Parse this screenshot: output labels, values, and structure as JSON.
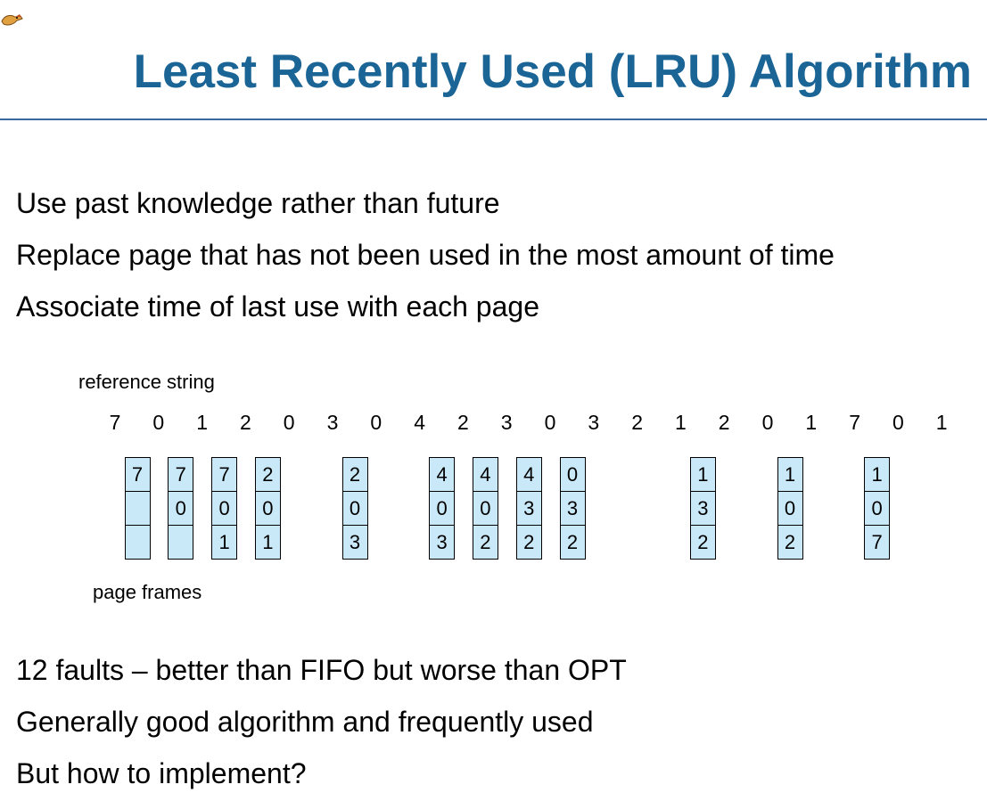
{
  "slide": {
    "title": "Least Recently Used (LRU) Algorithm",
    "logo_icon": "dinosaur-icon",
    "accent_color": "#1a6496",
    "rule_color": "#3a68a4"
  },
  "bullets_top": [
    "Use past knowledge rather than future",
    "Replace page that has not been used in the most amount of time",
    "Associate time of last use with each page"
  ],
  "diagram": {
    "reference_label": "reference string",
    "frames_label": "page frames",
    "reference_string": [
      "7",
      "0",
      "1",
      "2",
      "0",
      "3",
      "0",
      "4",
      "2",
      "3",
      "0",
      "3",
      "2",
      "1",
      "2",
      "0",
      "1",
      "7",
      "0",
      "1"
    ],
    "frame_color": "#c9e9f8",
    "frames": [
      {
        "ref_index": 0,
        "cells": [
          "7",
          "",
          ""
        ]
      },
      {
        "ref_index": 1,
        "cells": [
          "7",
          "0",
          ""
        ]
      },
      {
        "ref_index": 2,
        "cells": [
          "7",
          "0",
          "1"
        ]
      },
      {
        "ref_index": 3,
        "cells": [
          "2",
          "0",
          "1"
        ]
      },
      {
        "ref_index": 5,
        "cells": [
          "2",
          "0",
          "3"
        ]
      },
      {
        "ref_index": 7,
        "cells": [
          "4",
          "0",
          "3"
        ]
      },
      {
        "ref_index": 8,
        "cells": [
          "4",
          "0",
          "2"
        ]
      },
      {
        "ref_index": 9,
        "cells": [
          "4",
          "3",
          "2"
        ]
      },
      {
        "ref_index": 10,
        "cells": [
          "0",
          "3",
          "2"
        ]
      },
      {
        "ref_index": 13,
        "cells": [
          "1",
          "3",
          "2"
        ]
      },
      {
        "ref_index": 15,
        "cells": [
          "1",
          "0",
          "2"
        ]
      },
      {
        "ref_index": 17,
        "cells": [
          "1",
          "0",
          "7"
        ]
      }
    ]
  },
  "bullets_bottom": [
    "12 faults – better than FIFO but worse than OPT",
    "Generally good algorithm and frequently used",
    "But how to implement?"
  ]
}
